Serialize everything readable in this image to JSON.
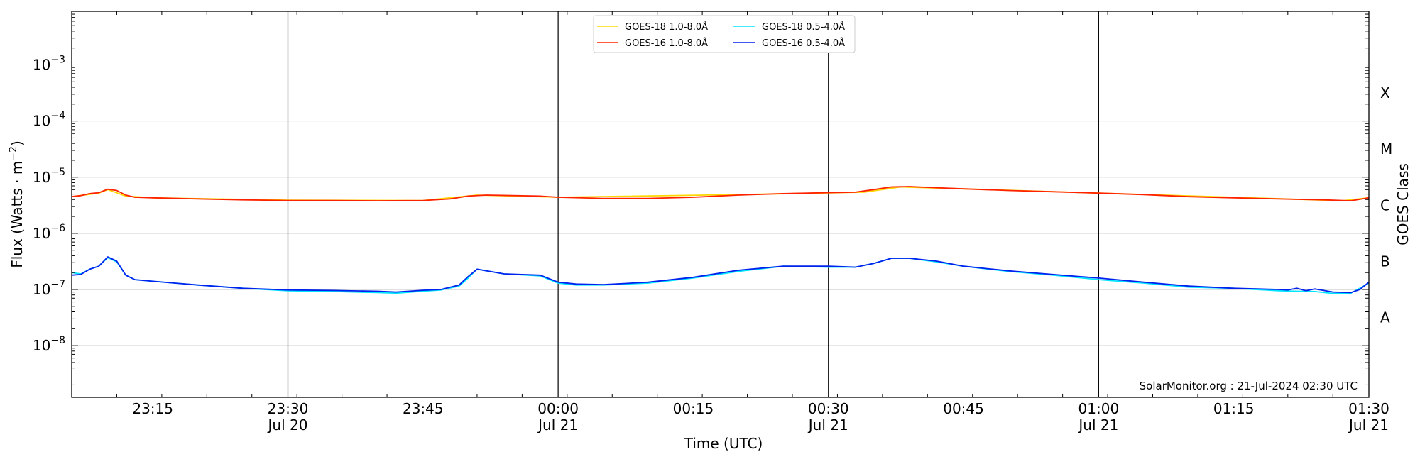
{
  "chart_data": {
    "type": "line",
    "xlabel": "Time (UTC)",
    "ylabel": "Flux (Watts · m",
    "ylabel_sup": "−2",
    "ylabel_end": ")",
    "right_label": "GOES Class",
    "x_range": [
      "2024-07-20 23:06",
      "2024-07-21 01:30"
    ],
    "y_range": [
      1.2e-09,
      0.009
    ],
    "y_scale": "log",
    "y_ticks": [
      {
        "value": 1e-08,
        "base": "10",
        "exp": "−8"
      },
      {
        "value": 1e-07,
        "base": "10",
        "exp": "−7"
      },
      {
        "value": 1e-06,
        "base": "10",
        "exp": "−6"
      },
      {
        "value": 1e-05,
        "base": "10",
        "exp": "−5"
      },
      {
        "value": 0.0001,
        "base": "10",
        "exp": "−4"
      },
      {
        "value": 0.001,
        "base": "10",
        "exp": "−3"
      }
    ],
    "x_ticks": [
      {
        "time": "2024-07-20 23:15",
        "label": "23:15",
        "sublabel": ""
      },
      {
        "time": "2024-07-20 23:30",
        "label": "23:30",
        "sublabel": "Jul 20"
      },
      {
        "time": "2024-07-20 23:45",
        "label": "23:45",
        "sublabel": ""
      },
      {
        "time": "2024-07-21 00:00",
        "label": "00:00",
        "sublabel": "Jul 21"
      },
      {
        "time": "2024-07-21 00:15",
        "label": "00:15",
        "sublabel": ""
      },
      {
        "time": "2024-07-21 00:30",
        "label": "00:30",
        "sublabel": "Jul 21"
      },
      {
        "time": "2024-07-21 00:45",
        "label": "00:45",
        "sublabel": ""
      },
      {
        "time": "2024-07-21 01:00",
        "label": "01:00",
        "sublabel": "Jul 21"
      },
      {
        "time": "2024-07-21 01:15",
        "label": "01:15",
        "sublabel": ""
      },
      {
        "time": "2024-07-21 01:30",
        "label": "01:30",
        "sublabel": "Jul 21"
      }
    ],
    "vertical_lines": [
      "2024-07-20 23:30",
      "2024-07-21 00:00",
      "2024-07-21 00:30",
      "2024-07-21 01:00"
    ],
    "goes_classes": [
      {
        "label": "A",
        "value": 3.16e-08
      },
      {
        "label": "B",
        "value": 3.16e-07
      },
      {
        "label": "C",
        "value": 3.16e-06
      },
      {
        "label": "M",
        "value": 3.16e-05
      },
      {
        "label": "X",
        "value": 0.000316
      }
    ],
    "grid": true,
    "legend_position": "top-center",
    "credit": "SolarMonitor.org : 21-Jul-2024 02:30 UTC",
    "series": [
      {
        "name": "GOES-18 1.0-8.0Å",
        "color": "#ffd700",
        "x": [
          "2024-07-20 23:06",
          "2024-07-20 23:09",
          "2024-07-20 23:10",
          "2024-07-20 23:12",
          "2024-07-20 23:15",
          "2024-07-20 23:30",
          "2024-07-20 23:45",
          "2024-07-20 23:51",
          "2024-07-21 00:00",
          "2024-07-21 00:20",
          "2024-07-21 00:34",
          "2024-07-21 00:38",
          "2024-07-21 00:48",
          "2024-07-21 01:00",
          "2024-07-21 01:15",
          "2024-07-21 01:27",
          "2024-07-21 01:30"
        ],
        "y": [
          4.5e-06,
          5.2e-06,
          6e-06,
          4.6e-06,
          4.3e-06,
          3.9e-06,
          3.85e-06,
          4.8e-06,
          4.4e-06,
          4.9e-06,
          5.4e-06,
          6.7e-06,
          6e-06,
          5.2e-06,
          4.4e-06,
          3.8e-06,
          4.3e-06
        ]
      },
      {
        "name": "GOES-16 1.0-8.0Å",
        "color": "#ff2200",
        "x": [
          "2024-07-20 23:06",
          "2024-07-20 23:07",
          "2024-07-20 23:08",
          "2024-07-20 23:09",
          "2024-07-20 23:10",
          "2024-07-20 23:11",
          "2024-07-20 23:12",
          "2024-07-20 23:13",
          "2024-07-20 23:15",
          "2024-07-20 23:20",
          "2024-07-20 23:25",
          "2024-07-20 23:30",
          "2024-07-20 23:35",
          "2024-07-20 23:40",
          "2024-07-20 23:45",
          "2024-07-20 23:48",
          "2024-07-20 23:50",
          "2024-07-20 23:52",
          "2024-07-20 23:55",
          "2024-07-20 23:58",
          "2024-07-21 00:00",
          "2024-07-21 00:05",
          "2024-07-21 00:10",
          "2024-07-21 00:15",
          "2024-07-21 00:20",
          "2024-07-21 00:25",
          "2024-07-21 00:30",
          "2024-07-21 00:33",
          "2024-07-21 00:35",
          "2024-07-21 00:37",
          "2024-07-21 00:39",
          "2024-07-21 00:42",
          "2024-07-21 00:45",
          "2024-07-21 00:50",
          "2024-07-21 00:55",
          "2024-07-21 01:00",
          "2024-07-21 01:05",
          "2024-07-21 01:10",
          "2024-07-21 01:15",
          "2024-07-21 01:20",
          "2024-07-21 01:25",
          "2024-07-21 01:28",
          "2024-07-21 01:30"
        ],
        "y": [
          4.5e-06,
          4.7e-06,
          5.1e-06,
          5.3e-06,
          6.1e-06,
          5.8e-06,
          4.8e-06,
          4.4e-06,
          4.3e-06,
          4.1e-06,
          3.95e-06,
          3.85e-06,
          3.85e-06,
          3.8e-06,
          3.85e-06,
          4.1e-06,
          4.6e-06,
          4.8e-06,
          4.7e-06,
          4.6e-06,
          4.4e-06,
          4.2e-06,
          4.2e-06,
          4.4e-06,
          4.8e-06,
          5.1e-06,
          5.3e-06,
          5.4e-06,
          6e-06,
          6.7e-06,
          6.8e-06,
          6.5e-06,
          6.2e-06,
          5.8e-06,
          5.5e-06,
          5.2e-06,
          4.9e-06,
          4.5e-06,
          4.3e-06,
          4.1e-06,
          3.95e-06,
          3.8e-06,
          4.3e-06
        ]
      },
      {
        "name": "GOES-18 0.5-4.0Å",
        "color": "#00e5ff",
        "x": [
          "2024-07-20 23:06",
          "2024-07-20 23:07",
          "2024-07-20 23:08",
          "2024-07-20 23:09",
          "2024-07-20 23:10",
          "2024-07-20 23:11",
          "2024-07-20 23:12",
          "2024-07-20 23:13",
          "2024-07-20 23:15",
          "2024-07-20 23:20",
          "2024-07-20 23:25",
          "2024-07-20 23:30",
          "2024-07-20 23:35",
          "2024-07-20 23:40",
          "2024-07-20 23:42",
          "2024-07-20 23:45",
          "2024-07-20 23:47",
          "2024-07-20 23:49",
          "2024-07-20 23:50",
          "2024-07-20 23:51",
          "2024-07-20 23:54",
          "2024-07-20 23:58",
          "2024-07-21 00:00",
          "2024-07-21 00:02",
          "2024-07-21 00:05",
          "2024-07-21 00:10",
          "2024-07-21 00:15",
          "2024-07-21 00:20",
          "2024-07-21 00:25",
          "2024-07-21 00:30",
          "2024-07-21 00:33",
          "2024-07-21 00:35",
          "2024-07-21 00:37",
          "2024-07-21 00:39",
          "2024-07-21 00:42",
          "2024-07-21 00:45",
          "2024-07-21 00:50",
          "2024-07-21 00:55",
          "2024-07-21 01:00",
          "2024-07-21 01:05",
          "2024-07-21 01:10",
          "2024-07-21 01:15",
          "2024-07-21 01:20",
          "2024-07-21 01:22",
          "2024-07-21 01:24",
          "2024-07-21 01:26",
          "2024-07-21 01:28",
          "2024-07-21 01:30"
        ],
        "y": [
          2e-07,
          1.9e-07,
          2.3e-07,
          2.6e-07,
          3.7e-07,
          3.1e-07,
          1.8e-07,
          1.5e-07,
          1.4e-07,
          1.2e-07,
          1.05e-07,
          9.5e-08,
          9.2e-08,
          8.8e-08,
          8.6e-08,
          9.3e-08,
          9.8e-08,
          1.15e-07,
          1.6e-07,
          2.3e-07,
          1.9e-07,
          1.75e-07,
          1.3e-07,
          1.2e-07,
          1.2e-07,
          1.3e-07,
          1.6e-07,
          2.1e-07,
          2.6e-07,
          2.5e-07,
          2.5e-07,
          2.9e-07,
          3.6e-07,
          3.6e-07,
          3.1e-07,
          2.6e-07,
          2.1e-07,
          1.8e-07,
          1.5e-07,
          1.3e-07,
          1.1e-07,
          1.05e-07,
          9.5e-08,
          9.3e-08,
          9.2e-08,
          8.5e-08,
          8.6e-08,
          1.3e-07
        ]
      },
      {
        "name": "GOES-16 0.5-4.0Å",
        "color": "#0022ee",
        "x": [
          "2024-07-20 23:06",
          "2024-07-20 23:07",
          "2024-07-20 23:08",
          "2024-07-20 23:09",
          "2024-07-20 23:10",
          "2024-07-20 23:11",
          "2024-07-20 23:12",
          "2024-07-20 23:13",
          "2024-07-20 23:15",
          "2024-07-20 23:20",
          "2024-07-20 23:25",
          "2024-07-20 23:30",
          "2024-07-20 23:35",
          "2024-07-20 23:40",
          "2024-07-20 23:42",
          "2024-07-20 23:45",
          "2024-07-20 23:47",
          "2024-07-20 23:49",
          "2024-07-20 23:50",
          "2024-07-20 23:51",
          "2024-07-20 23:54",
          "2024-07-20 23:58",
          "2024-07-21 00:00",
          "2024-07-21 00:02",
          "2024-07-21 00:05",
          "2024-07-21 00:10",
          "2024-07-21 00:15",
          "2024-07-21 00:20",
          "2024-07-21 00:25",
          "2024-07-21 00:30",
          "2024-07-21 00:33",
          "2024-07-21 00:35",
          "2024-07-21 00:37",
          "2024-07-21 00:39",
          "2024-07-21 00:42",
          "2024-07-21 00:45",
          "2024-07-21 00:50",
          "2024-07-21 00:55",
          "2024-07-21 01:00",
          "2024-07-21 01:05",
          "2024-07-21 01:10",
          "2024-07-21 01:15",
          "2024-07-21 01:20",
          "2024-07-21 01:21",
          "2024-07-21 01:22",
          "2024-07-21 01:23",
          "2024-07-21 01:24",
          "2024-07-21 01:26",
          "2024-07-21 01:28",
          "2024-07-21 01:29",
          "2024-07-21 01:30"
        ],
        "y": [
          1.8e-07,
          1.85e-07,
          2.3e-07,
          2.6e-07,
          3.8e-07,
          3.2e-07,
          1.8e-07,
          1.5e-07,
          1.4e-07,
          1.2e-07,
          1.05e-07,
          9.8e-08,
          9.6e-08,
          9.3e-08,
          9e-08,
          9.7e-08,
          1e-07,
          1.2e-07,
          1.7e-07,
          2.3e-07,
          1.9e-07,
          1.8e-07,
          1.35e-07,
          1.25e-07,
          1.22e-07,
          1.35e-07,
          1.65e-07,
          2.2e-07,
          2.6e-07,
          2.6e-07,
          2.5e-07,
          2.9e-07,
          3.6e-07,
          3.6e-07,
          3.2e-07,
          2.6e-07,
          2.15e-07,
          1.85e-07,
          1.6e-07,
          1.35e-07,
          1.15e-07,
          1.05e-07,
          1e-07,
          9.8e-08,
          1.05e-07,
          9.5e-08,
          1.02e-07,
          9e-08,
          8.8e-08,
          1e-07,
          1.35e-07
        ]
      }
    ]
  }
}
